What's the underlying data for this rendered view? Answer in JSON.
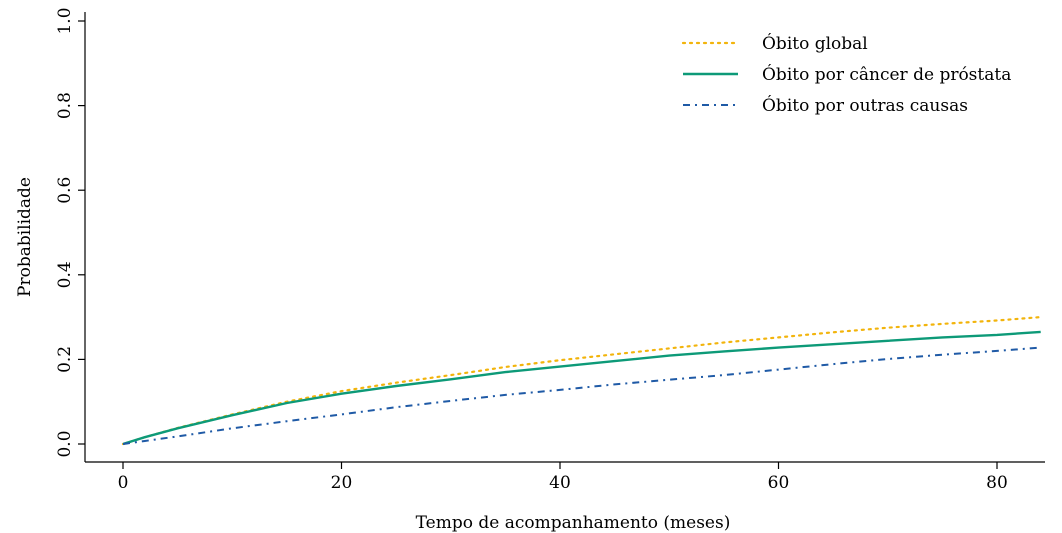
{
  "chart_data": {
    "type": "line",
    "title": "",
    "xlabel": "Tempo de acompanhamento (meses)",
    "ylabel": "Probabilidade",
    "xlim": [
      0,
      84
    ],
    "ylim": [
      0,
      1
    ],
    "xticks": [
      0,
      20,
      40,
      60,
      80
    ],
    "xtick_labels": [
      "0",
      "20",
      "40",
      "60",
      "80"
    ],
    "yticks": [
      0,
      0.2,
      0.4,
      0.6,
      0.8,
      1
    ],
    "ytick_labels": [
      "0.0",
      "0.2",
      "0.4",
      "0.6",
      "0.8",
      "1.0"
    ],
    "grid": false,
    "legend_position": "top-right",
    "series": [
      {
        "name": "Óbito global",
        "color": "#f2b40c",
        "style": "dotted",
        "x": [
          0,
          2,
          5,
          10,
          15,
          20,
          25,
          30,
          35,
          40,
          45,
          50,
          55,
          60,
          65,
          70,
          75,
          80,
          84
        ],
        "y": [
          0,
          0.016,
          0.038,
          0.07,
          0.1,
          0.125,
          0.145,
          0.163,
          0.182,
          0.198,
          0.212,
          0.226,
          0.24,
          0.252,
          0.264,
          0.275,
          0.284,
          0.292,
          0.3
        ]
      },
      {
        "name": "Óbito por câncer de próstata",
        "color": "#0d9a78",
        "style": "solid",
        "x": [
          0,
          2,
          5,
          10,
          15,
          20,
          25,
          30,
          35,
          40,
          45,
          50,
          55,
          60,
          65,
          70,
          75,
          80,
          84
        ],
        "y": [
          0,
          0.016,
          0.037,
          0.068,
          0.097,
          0.119,
          0.137,
          0.153,
          0.17,
          0.183,
          0.196,
          0.209,
          0.219,
          0.228,
          0.236,
          0.244,
          0.252,
          0.258,
          0.265
        ]
      },
      {
        "name": "Óbito por outras causas",
        "color": "#1f5aa6",
        "style": "dashdot",
        "x": [
          0,
          2,
          5,
          10,
          15,
          20,
          25,
          30,
          35,
          40,
          45,
          50,
          55,
          60,
          65,
          70,
          75,
          80,
          84
        ],
        "y": [
          0,
          0.007,
          0.018,
          0.037,
          0.054,
          0.07,
          0.087,
          0.102,
          0.116,
          0.128,
          0.141,
          0.152,
          0.163,
          0.176,
          0.189,
          0.201,
          0.211,
          0.22,
          0.228
        ]
      }
    ]
  }
}
